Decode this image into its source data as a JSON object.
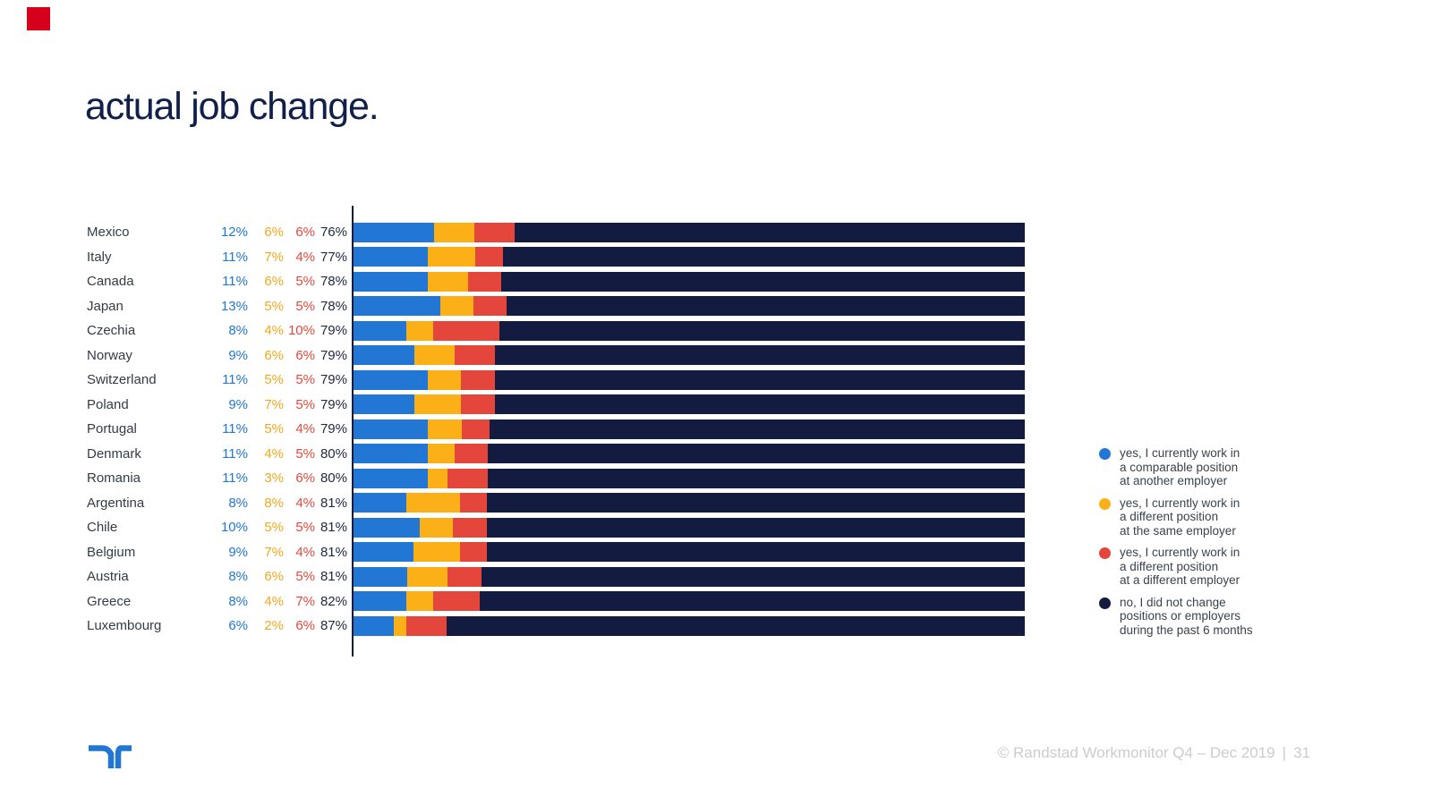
{
  "title": "actual job change.",
  "accent_color": "#d6001c",
  "chart_data": {
    "type": "bar",
    "orientation": "horizontal-stacked",
    "title": "actual job change.",
    "xlim": [
      0,
      100
    ],
    "value_suffix": "%",
    "grid": false,
    "legend_position": "right",
    "categories": [
      "Mexico",
      "Italy",
      "Canada",
      "Japan",
      "Czechia",
      "Norway",
      "Switzerland",
      "Poland",
      "Portugal",
      "Denmark",
      "Romania",
      "Argentina",
      "Chile",
      "Belgium",
      "Austria",
      "Greece",
      "Luxembourg"
    ],
    "series": [
      {
        "name": "yes, I currently work in a comparable position at another employer",
        "color": "#2277d4",
        "values": [
          12,
          11,
          11,
          13,
          8,
          9,
          11,
          9,
          11,
          11,
          11,
          8,
          10,
          9,
          8,
          8,
          6
        ]
      },
      {
        "name": "yes, I currently work in a different position at the same employer",
        "color": "#fbb017",
        "values": [
          6,
          7,
          6,
          5,
          4,
          6,
          5,
          7,
          5,
          4,
          3,
          8,
          5,
          7,
          6,
          4,
          2
        ]
      },
      {
        "name": "yes, I currently work in a different position at a different employer",
        "color": "#e5463b",
        "values": [
          6,
          4,
          5,
          5,
          10,
          6,
          5,
          5,
          4,
          5,
          6,
          4,
          5,
          4,
          5,
          7,
          6
        ]
      },
      {
        "name": "no, I did not change positions or employers during the past 6 months",
        "color": "#131b40",
        "values": [
          76,
          77,
          78,
          78,
          79,
          79,
          79,
          79,
          79,
          80,
          80,
          81,
          81,
          81,
          81,
          82,
          87
        ]
      }
    ],
    "value_colors": [
      "#2277d4",
      "#f2a81d",
      "#e2493c",
      "#202a40"
    ]
  },
  "legend": {
    "items": [
      {
        "color": "#2277d4",
        "lines": [
          "yes, I currently work in",
          "a comparable position",
          "at another employer"
        ]
      },
      {
        "color": "#fbb017",
        "lines": [
          "yes, I currently work in",
          "a different position",
          "at the same employer"
        ]
      },
      {
        "color": "#e5463b",
        "lines": [
          "yes, I currently work in",
          "a different position",
          "at a different employer"
        ]
      },
      {
        "color": "#131b40",
        "lines": [
          "no, I did not change",
          "positions or employers",
          "during the past 6 months"
        ]
      }
    ]
  },
  "footer": {
    "copyright": "© Randstad Workmonitor Q4 – Dec 2019",
    "separator": "|",
    "page": "31"
  },
  "logo_color": "#2277d4"
}
